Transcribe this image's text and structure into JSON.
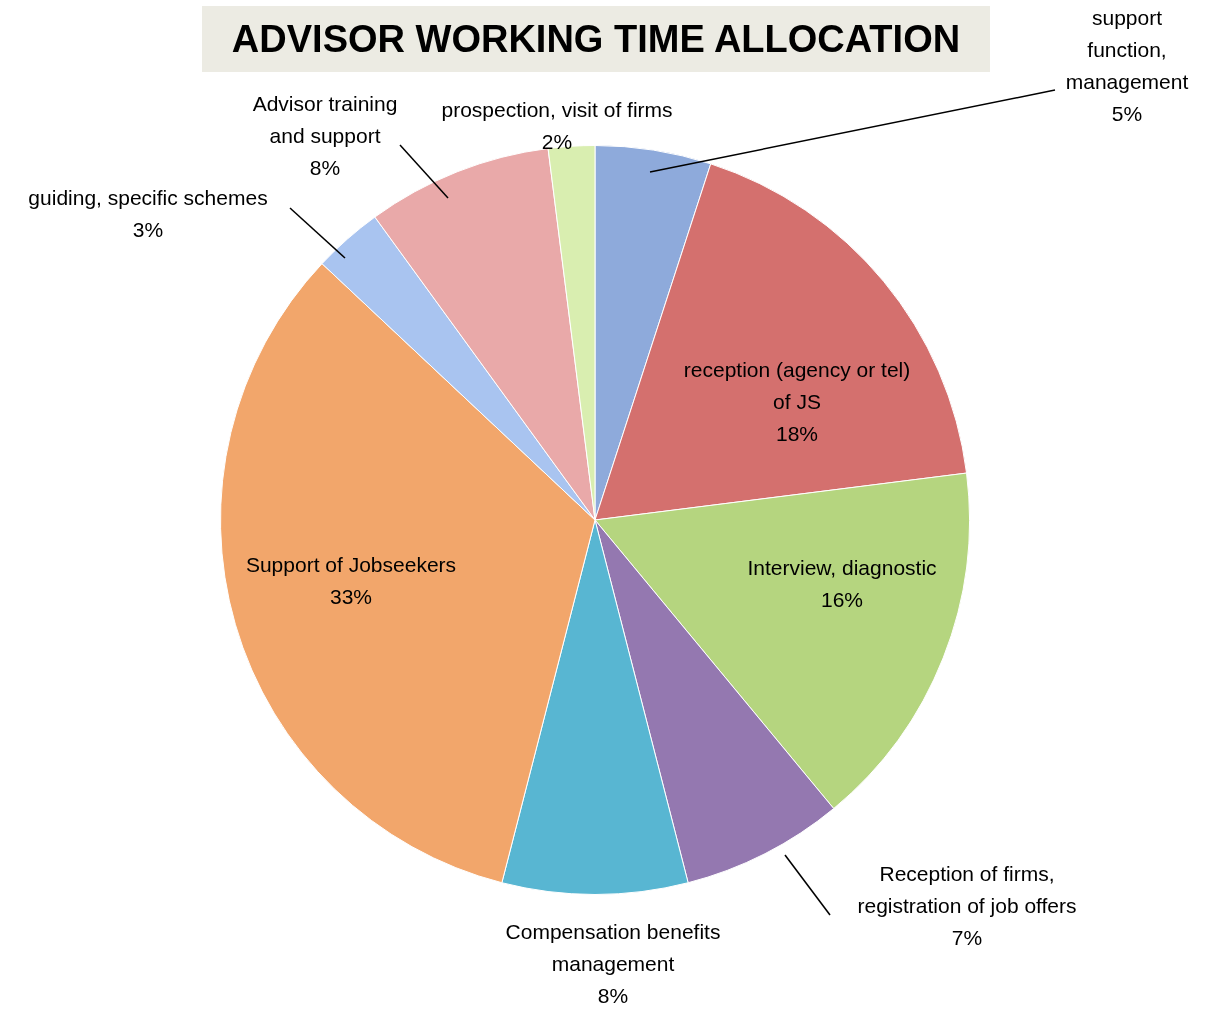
{
  "chart_data": {
    "type": "pie",
    "title": "ADVISOR WORKING TIME ALLOCATION",
    "categories": [
      "support function, management",
      "reception (agency or tel) of JS",
      "Interview, diagnostic",
      "Reception of firms, registration of job offers",
      "Compensation benefits management",
      "Support of Jobseekers",
      "guiding, specific schemes",
      "Advisor training and support",
      "prospection, visit of firms"
    ],
    "values": [
      5,
      18,
      16,
      7,
      8,
      33,
      3,
      8,
      2
    ],
    "value_labels": [
      "5%",
      "18%",
      "16%",
      "7%",
      "8%",
      "33%",
      "3%",
      "8%",
      "2%"
    ],
    "colors": [
      "#8eaadb",
      "#d4706e",
      "#b5d57f",
      "#9478b0",
      "#58b6d2",
      "#f2a66b",
      "#a9c4f0",
      "#e9a9a9",
      "#d9eeb0"
    ],
    "legend": false
  }
}
